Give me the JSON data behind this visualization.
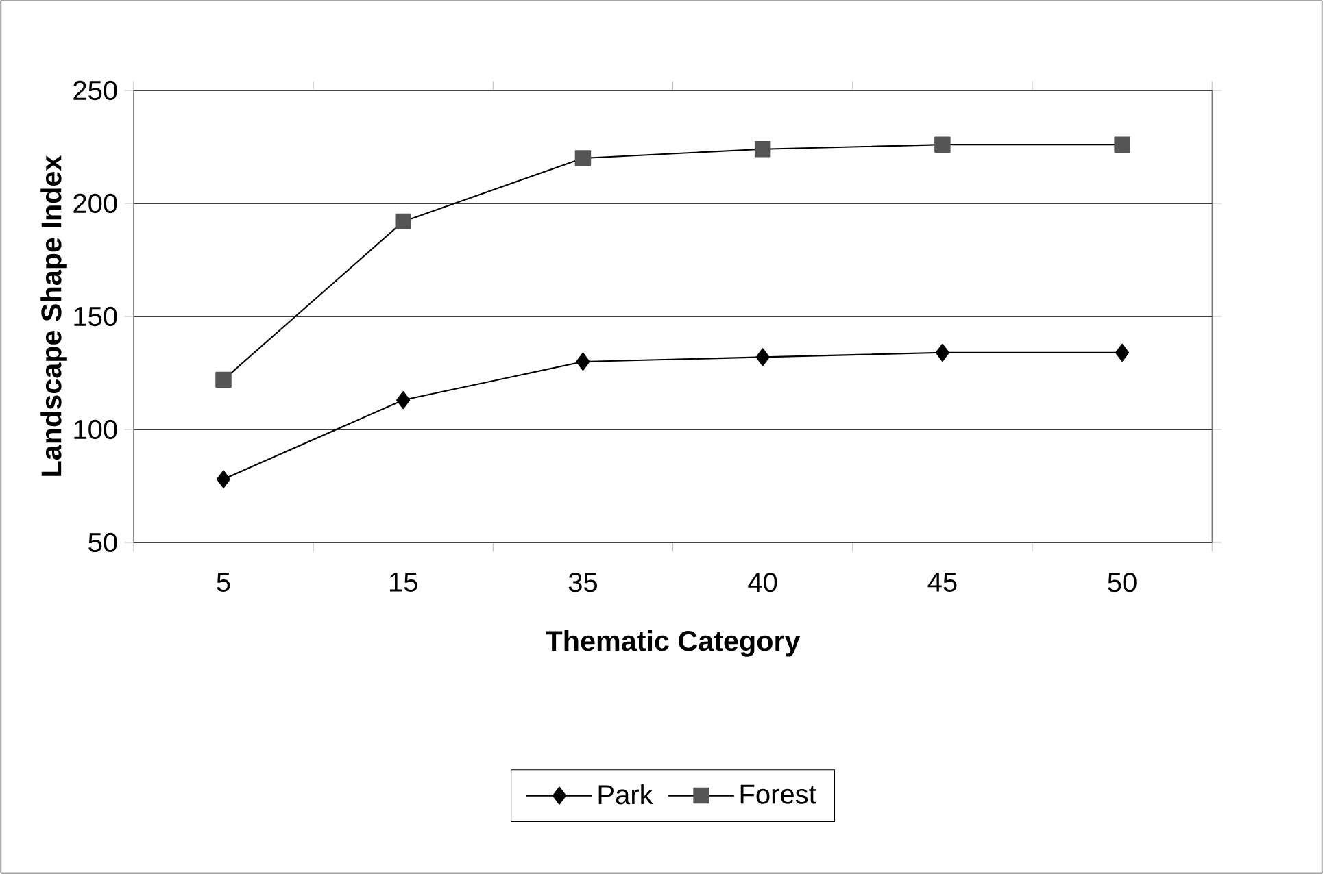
{
  "chart_data": {
    "type": "line",
    "xlabel": "Thematic Category",
    "ylabel": "Landscape Shape Index",
    "categories": [
      "5",
      "15",
      "35",
      "40",
      "45",
      "50"
    ],
    "series": [
      {
        "name": "Park",
        "color": "#000000",
        "marker": "diamond",
        "values": [
          78,
          113,
          130,
          132,
          134,
          134
        ]
      },
      {
        "name": "Forest",
        "color": "#555555",
        "marker": "square",
        "values": [
          122,
          192,
          220,
          224,
          226,
          226
        ]
      }
    ],
    "ylim": [
      50,
      250
    ],
    "yticks": [
      50,
      100,
      150,
      200,
      250
    ],
    "grid": "y",
    "legend": "bottom",
    "line_style": "solid"
  }
}
